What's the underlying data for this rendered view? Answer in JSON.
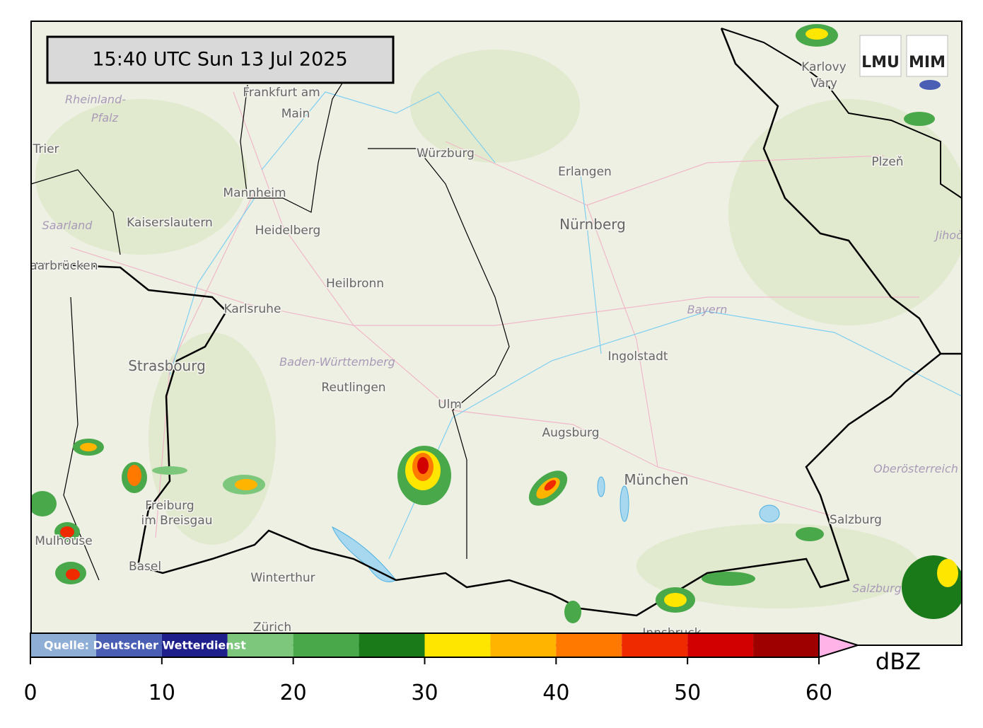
{
  "timestamp": "15:40 UTC  Sun 13 Jul 2025",
  "logos": [
    "LMU",
    "MIM"
  ],
  "source": "Quelle: Deutscher Wetterdienst",
  "places": {
    "cities": [
      "Frankfurt am",
      "Main",
      "Trier",
      "Würzburg",
      "Erlangen",
      "Nürnberg",
      "Mannheim",
      "Kaiserslautern",
      "Heidelberg",
      "Saarbrücken",
      "Karlsruhe",
      "Heilbronn",
      "Strasbourg",
      "Reutlingen",
      "Ulm",
      "Augsburg",
      "Ingolstadt",
      "München",
      "Freiburg",
      "im Breisgau",
      "Mulhouse",
      "Basel",
      "Winterthur",
      "Zürich",
      "Innsbruck",
      "Salzburg",
      "Karlovy",
      "Vary",
      "Plzeň"
    ],
    "regions": [
      "Rheinland-",
      "Pfalz",
      "Saarland",
      "Baden-Württemberg",
      "Bayern",
      "Oberösterreich",
      "Salzburg",
      "Jihočeský kraj"
    ]
  },
  "colorbar": {
    "unit": "dBZ",
    "bounds": [
      0,
      5,
      10,
      15,
      20,
      25,
      30,
      35,
      40,
      45,
      50,
      55,
      60
    ],
    "colors": [
      "#8eaed6",
      "#4a5eb4",
      "#1f1f8c",
      "#7cc77c",
      "#48a84a",
      "#1a7a1a",
      "#ffe600",
      "#ffb400",
      "#ff7800",
      "#f02a00",
      "#d20000",
      "#9e0000"
    ],
    "over_color": "#ffb3e6",
    "ticks": [
      0,
      10,
      20,
      30,
      40,
      50,
      60
    ]
  }
}
